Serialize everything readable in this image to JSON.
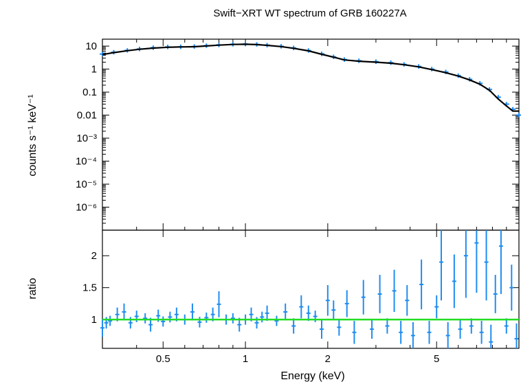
{
  "chart_data": [
    {
      "type": "scatter",
      "title": "Swift−XRT WT spectrum of GRB 160227A",
      "xlabel": "Energy (keV)",
      "ylabel": "counts s⁻¹ keV⁻¹",
      "xscale": "log",
      "yscale": "log",
      "xlim": [
        0.3,
        10
      ],
      "ylim": [
        1e-07,
        20
      ],
      "x_ticks": [
        0.5,
        1,
        2,
        5
      ],
      "x_tick_labels": [
        "0.5",
        "1",
        "2",
        "5"
      ],
      "y_ticks": [
        10,
        1,
        0.1,
        0.01,
        0.001,
        0.0001,
        1e-05,
        1e-06
      ],
      "y_tick_labels": [
        "10",
        "1",
        "0.1",
        "0.01",
        "10⁻³",
        "10⁻⁴",
        "10⁻⁵",
        "10⁻⁶"
      ],
      "data_color": "#1f8cf0",
      "model_color": "#000000",
      "spectrum_points": [
        [
          0.3,
          4.5
        ],
        [
          0.33,
          5.4
        ],
        [
          0.37,
          6.5
        ],
        [
          0.41,
          7.5
        ],
        [
          0.46,
          8.5
        ],
        [
          0.52,
          9.2
        ],
        [
          0.58,
          9.3
        ],
        [
          0.65,
          9.6
        ],
        [
          0.72,
          10.4
        ],
        [
          0.8,
          11.2
        ],
        [
          0.9,
          12.0
        ],
        [
          1.0,
          12.2
        ],
        [
          1.1,
          11.8
        ],
        [
          1.2,
          11.0
        ],
        [
          1.35,
          9.8
        ],
        [
          1.5,
          8.3
        ],
        [
          1.7,
          6.4
        ],
        [
          1.9,
          4.6
        ],
        [
          2.1,
          3.4
        ],
        [
          2.3,
          2.6
        ],
        [
          2.6,
          2.3
        ],
        [
          3.0,
          2.1
        ],
        [
          3.4,
          1.9
        ],
        [
          3.8,
          1.6
        ],
        [
          4.3,
          1.3
        ],
        [
          4.8,
          1.0
        ],
        [
          5.4,
          0.75
        ],
        [
          6.0,
          0.52
        ],
        [
          6.6,
          0.36
        ],
        [
          7.2,
          0.24
        ],
        [
          7.8,
          0.13
        ],
        [
          8.4,
          0.06
        ],
        [
          9.0,
          0.03
        ],
        [
          9.5,
          0.018
        ],
        [
          10.0,
          0.01
        ]
      ],
      "model_points": [
        [
          0.3,
          4.3
        ],
        [
          0.33,
          5.2
        ],
        [
          0.37,
          6.3
        ],
        [
          0.41,
          7.3
        ],
        [
          0.46,
          8.2
        ],
        [
          0.52,
          8.9
        ],
        [
          0.58,
          9.2
        ],
        [
          0.65,
          9.4
        ],
        [
          0.72,
          10.1
        ],
        [
          0.8,
          11.0
        ],
        [
          0.9,
          11.8
        ],
        [
          1.0,
          12.0
        ],
        [
          1.1,
          11.6
        ],
        [
          1.2,
          10.8
        ],
        [
          1.35,
          9.5
        ],
        [
          1.5,
          8.0
        ],
        [
          1.7,
          6.2
        ],
        [
          1.9,
          4.4
        ],
        [
          2.1,
          3.3
        ],
        [
          2.3,
          2.5
        ],
        [
          2.6,
          2.2
        ],
        [
          3.0,
          2.0
        ],
        [
          3.4,
          1.8
        ],
        [
          3.8,
          1.55
        ],
        [
          4.3,
          1.25
        ],
        [
          4.8,
          0.95
        ],
        [
          5.4,
          0.7
        ],
        [
          6.0,
          0.5
        ],
        [
          6.6,
          0.34
        ],
        [
          7.2,
          0.22
        ],
        [
          7.8,
          0.12
        ],
        [
          8.4,
          0.05
        ],
        [
          9.0,
          0.025
        ],
        [
          9.5,
          0.015
        ],
        [
          10.0,
          0.015
        ]
      ]
    },
    {
      "type": "scatter",
      "xlabel": "Energy (keV)",
      "ylabel": "ratio",
      "xscale": "log",
      "yscale": "linear",
      "xlim": [
        0.3,
        10
      ],
      "ylim": [
        0.55,
        2.4
      ],
      "y_ticks": [
        1,
        1.5,
        2
      ],
      "y_tick_labels": [
        "1",
        "1.5",
        "2"
      ],
      "reference_line": 1,
      "reference_color": "#22dd22",
      "data_color": "#1f8cf0",
      "ratio_points": [
        [
          0.3,
          0.87
        ],
        [
          0.31,
          0.95
        ],
        [
          0.32,
          0.98
        ],
        [
          0.34,
          1.08
        ],
        [
          0.36,
          1.12
        ],
        [
          0.38,
          0.95
        ],
        [
          0.4,
          1.05
        ],
        [
          0.43,
          1.02
        ],
        [
          0.45,
          0.92
        ],
        [
          0.48,
          1.06
        ],
        [
          0.5,
          0.97
        ],
        [
          0.53,
          1.04
        ],
        [
          0.56,
          1.08
        ],
        [
          0.6,
          1.0
        ],
        [
          0.64,
          1.12
        ],
        [
          0.68,
          0.96
        ],
        [
          0.72,
          1.03
        ],
        [
          0.76,
          1.08
        ],
        [
          0.8,
          1.24
        ],
        [
          0.85,
          1.0
        ],
        [
          0.9,
          1.02
        ],
        [
          0.95,
          0.92
        ],
        [
          1.0,
          1.0
        ],
        [
          1.05,
          1.08
        ],
        [
          1.1,
          0.95
        ],
        [
          1.15,
          1.04
        ],
        [
          1.2,
          1.1
        ],
        [
          1.3,
          0.98
        ],
        [
          1.4,
          1.12
        ],
        [
          1.5,
          0.9
        ],
        [
          1.6,
          1.2
        ],
        [
          1.7,
          1.1
        ],
        [
          1.8,
          1.05
        ],
        [
          1.9,
          0.85
        ],
        [
          2.0,
          1.3
        ],
        [
          2.1,
          1.15
        ],
        [
          2.2,
          0.88
        ],
        [
          2.35,
          1.25
        ],
        [
          2.5,
          0.8
        ],
        [
          2.7,
          1.35
        ],
        [
          2.9,
          0.85
        ],
        [
          3.1,
          1.4
        ],
        [
          3.3,
          0.9
        ],
        [
          3.5,
          1.45
        ],
        [
          3.7,
          0.8
        ],
        [
          3.9,
          1.3
        ],
        [
          4.1,
          0.75
        ],
        [
          4.4,
          1.55
        ],
        [
          4.7,
          0.8
        ],
        [
          5.0,
          1.2
        ],
        [
          5.2,
          1.9
        ],
        [
          5.5,
          0.75
        ],
        [
          5.8,
          1.6
        ],
        [
          6.1,
          0.85
        ],
        [
          6.4,
          2.0
        ],
        [
          6.7,
          0.9
        ],
        [
          7.0,
          2.2
        ],
        [
          7.3,
          0.8
        ],
        [
          7.6,
          1.9
        ],
        [
          7.9,
          0.65
        ],
        [
          8.2,
          1.4
        ],
        [
          8.6,
          2.15
        ],
        [
          9.0,
          0.9
        ],
        [
          9.4,
          1.5
        ],
        [
          9.8,
          0.7
        ]
      ]
    }
  ]
}
